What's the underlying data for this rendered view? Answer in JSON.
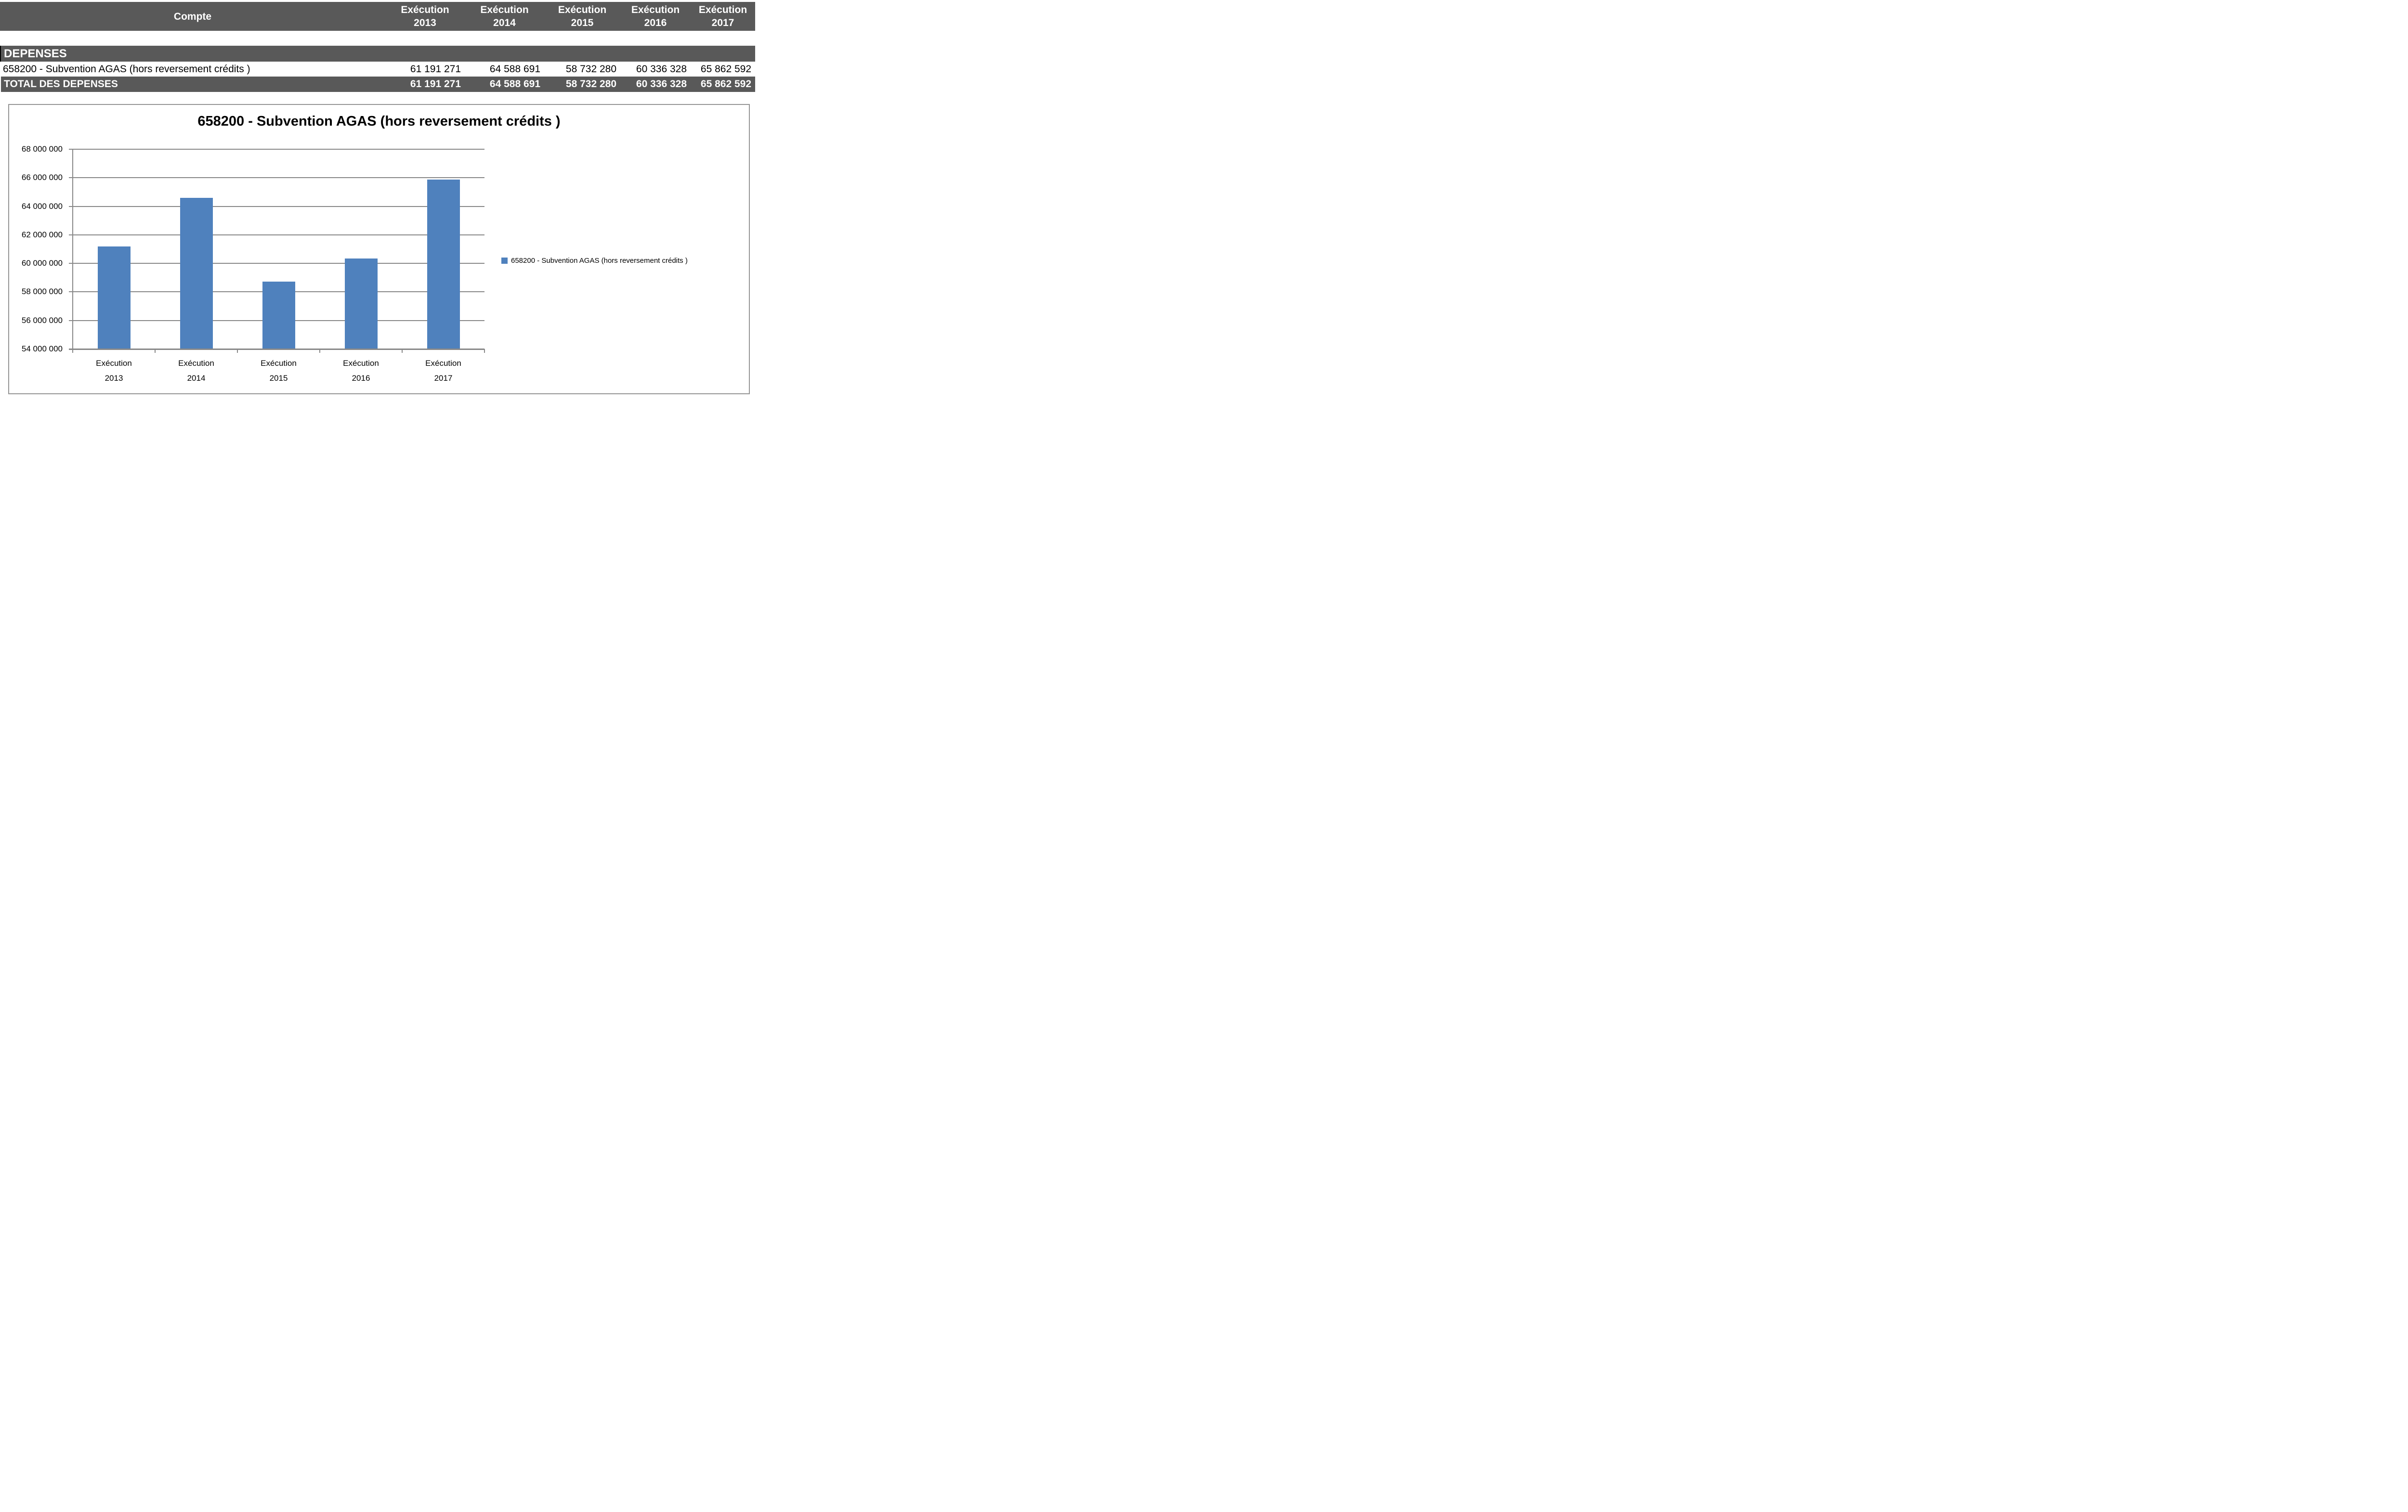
{
  "table": {
    "account_header": "Compte",
    "year_columns": [
      {
        "line1": "Exécution",
        "line2": "2013"
      },
      {
        "line1": "Exécution",
        "line2": "2014"
      },
      {
        "line1": "Exécution",
        "line2": "2015"
      },
      {
        "line1": "Exécution",
        "line2": "2016"
      },
      {
        "line1": "Exécution",
        "line2": "2017"
      }
    ],
    "section_header": "DEPENSES",
    "rows": [
      {
        "label": "658200 - Subvention AGAS (hors reversement crédits )",
        "values": [
          "61 191 271",
          "64 588 691",
          "58 732 280",
          "60 336 328",
          "65 862 592"
        ]
      }
    ],
    "total_row": {
      "label": "TOTAL DES DEPENSES",
      "values": [
        "61 191 271",
        "64 588 691",
        "58 732 280",
        "60 336 328",
        "65 862 592"
      ]
    },
    "header_bg": "#595959"
  },
  "chart_data": {
    "type": "bar",
    "title": "658200 - Subvention AGAS (hors reversement crédits )",
    "categories": [
      "Exécution\n2013",
      "Exécution\n2014",
      "Exécution\n2015",
      "Exécution\n2016",
      "Exécution\n2017"
    ],
    "series": [
      {
        "name": "658200 - Subvention AGAS (hors reversement crédits )",
        "values": [
          61191271,
          64588691,
          58732280,
          60336328,
          65862592
        ],
        "color": "#4F81BD"
      }
    ],
    "xlabel": "",
    "ylabel": "",
    "ylim": [
      54000000,
      68000000
    ],
    "ytick_step": 2000000,
    "ytick_labels": [
      "54 000 000",
      "56 000 000",
      "58 000 000",
      "60 000 000",
      "62 000 000",
      "64 000 000",
      "66 000 000",
      "68 000 000"
    ],
    "grid": true,
    "legend_position": "right",
    "gridline_color": "#898989",
    "axis_color": "#898989",
    "plot_border_color": "#969696"
  }
}
